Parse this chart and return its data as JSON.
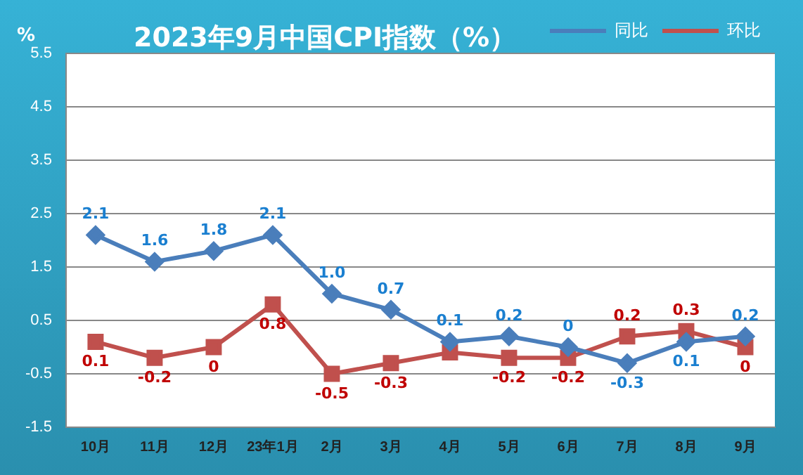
{
  "chart_data": {
    "type": "line",
    "title": "2023年9月中国CPI指数（%）",
    "ylabel": "%",
    "categories": [
      "10月",
      "11月",
      "12月",
      "23年1月",
      "2月",
      "3月",
      "4月",
      "5月",
      "6月",
      "7月",
      "8月",
      "9月"
    ],
    "series": [
      {
        "name": "同比",
        "color": "#4a7ebb",
        "marker": "diamond",
        "values": [
          2.1,
          1.6,
          1.8,
          2.1,
          1.0,
          0.7,
          0.1,
          0.2,
          0,
          -0.3,
          0.1,
          0.2
        ],
        "value_labels": [
          "2.1",
          "1.6",
          "1.8",
          "2.1",
          "1.0",
          "0.7",
          "0.1",
          "0.2",
          "0",
          "-0.3",
          "0.1",
          "0.2"
        ]
      },
      {
        "name": "环比",
        "color": "#c0504d",
        "marker": "square",
        "values": [
          0.1,
          -0.2,
          0,
          0.8,
          -0.5,
          -0.3,
          -0.1,
          -0.2,
          -0.2,
          0.2,
          0.3,
          0
        ],
        "value_labels": [
          "0.1",
          "-0.2",
          "0",
          "0.8",
          "-0.5",
          "-0.3",
          null,
          "-0.2",
          "-0.2",
          "0.2",
          "0.3",
          "0"
        ]
      }
    ],
    "ylim": [
      -1.5,
      5.5
    ],
    "yticks": [
      -1.5,
      -0.5,
      0.5,
      1.5,
      2.5,
      3.5,
      4.5,
      5.5
    ],
    "grid": "y",
    "legend": "top right"
  }
}
